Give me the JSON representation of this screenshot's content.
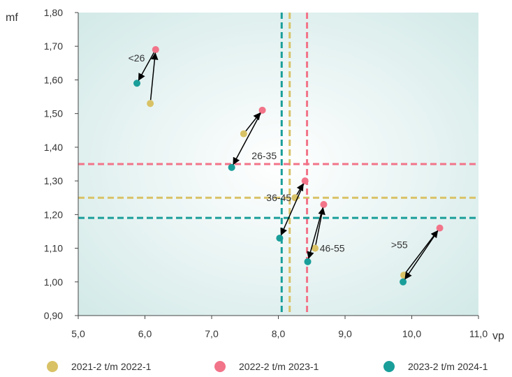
{
  "chart_data": {
    "type": "scatter",
    "xlabel": "vp",
    "ylabel": "mf",
    "xlim": [
      5.0,
      11.0
    ],
    "ylim": [
      0.9,
      1.8
    ],
    "x_ticks": [
      5.0,
      6.0,
      7.0,
      8.0,
      9.0,
      10.0,
      11.0
    ],
    "x_tick_labels": [
      "5,0",
      "6,0",
      "7,0",
      "8,0",
      "9,0",
      "10,0",
      "11,0"
    ],
    "y_ticks": [
      0.9,
      1.0,
      1.1,
      1.2,
      1.3,
      1.4,
      1.5,
      1.6,
      1.7,
      1.8
    ],
    "y_tick_labels": [
      "0,90",
      "1,00",
      "1,10",
      "1,20",
      "1,30",
      "1,40",
      "1,50",
      "1,60",
      "1,70",
      "1,80"
    ],
    "grid": false,
    "legend_position": "bottom",
    "series": [
      {
        "name": "2021-2 t/m 2022-1",
        "color": "#d9c266",
        "points": [
          {
            "group": "<26",
            "x": 6.08,
            "y": 1.53
          },
          {
            "group": "26-35",
            "x": 7.48,
            "y": 1.44
          },
          {
            "group": "36-45",
            "x": 8.25,
            "y": 1.25
          },
          {
            "group": "46-55",
            "x": 8.55,
            "y": 1.1
          },
          {
            "group": ">55",
            "x": 9.88,
            "y": 1.02
          }
        ],
        "reference_lines": {
          "x": 8.17,
          "y": 1.25
        }
      },
      {
        "name": "2022-2 t/m 2023-1",
        "color": "#f27489",
        "points": [
          {
            "group": "<26",
            "x": 6.16,
            "y": 1.69
          },
          {
            "group": "26-35",
            "x": 7.76,
            "y": 1.51
          },
          {
            "group": "36-45",
            "x": 8.4,
            "y": 1.3
          },
          {
            "group": "46-55",
            "x": 8.68,
            "y": 1.23
          },
          {
            "group": ">55",
            "x": 10.42,
            "y": 1.16
          }
        ],
        "reference_lines": {
          "x": 8.43,
          "y": 1.35
        }
      },
      {
        "name": "2023-2 t/m 2024-1",
        "color": "#1a9e9a",
        "points": [
          {
            "group": "<26",
            "x": 5.88,
            "y": 1.59
          },
          {
            "group": "26-35",
            "x": 7.3,
            "y": 1.34
          },
          {
            "group": "36-45",
            "x": 8.02,
            "y": 1.13
          },
          {
            "group": "46-55",
            "x": 8.44,
            "y": 1.06
          },
          {
            "group": ">55",
            "x": 9.87,
            "y": 1.0
          }
        ],
        "reference_lines": {
          "x": 8.05,
          "y": 1.19
        }
      }
    ],
    "group_labels": [
      {
        "text": "<26",
        "x": 5.75,
        "y": 1.665
      },
      {
        "text": "26-35",
        "x": 7.6,
        "y": 1.375
      },
      {
        "text": "36-45",
        "x": 7.82,
        "y": 1.25
      },
      {
        "text": "46-55",
        "x": 8.62,
        "y": 1.1
      },
      {
        "text": ">55",
        "x": 9.69,
        "y": 1.11
      }
    ],
    "arrows": [
      {
        "from": [
          6.08,
          1.53
        ],
        "to": [
          6.16,
          1.69
        ]
      },
      {
        "from": [
          6.16,
          1.69
        ],
        "to": [
          5.88,
          1.59
        ]
      },
      {
        "from": [
          7.48,
          1.44
        ],
        "to": [
          7.76,
          1.51
        ]
      },
      {
        "from": [
          7.76,
          1.51
        ],
        "to": [
          7.3,
          1.34
        ]
      },
      {
        "from": [
          8.25,
          1.25
        ],
        "to": [
          8.4,
          1.3
        ]
      },
      {
        "from": [
          8.4,
          1.3
        ],
        "to": [
          8.02,
          1.13
        ]
      },
      {
        "from": [
          8.55,
          1.1
        ],
        "to": [
          8.68,
          1.23
        ]
      },
      {
        "from": [
          8.68,
          1.23
        ],
        "to": [
          8.44,
          1.06
        ]
      },
      {
        "from": [
          9.88,
          1.02
        ],
        "to": [
          10.42,
          1.16
        ]
      },
      {
        "from": [
          10.42,
          1.16
        ],
        "to": [
          9.87,
          1.0
        ]
      }
    ],
    "colors": {
      "plot_background_center": "#ffffff",
      "plot_background_edge": "#cfe8e6",
      "axis": "#444444",
      "arrow": "#000000"
    }
  }
}
